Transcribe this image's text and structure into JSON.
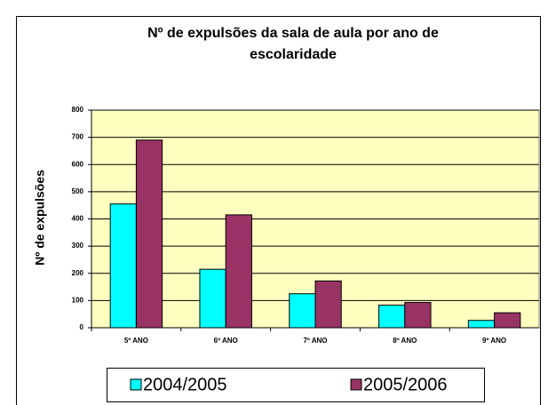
{
  "chart_data": {
    "type": "bar",
    "title": [
      "Nº de expulsões da sala de aula por ano de",
      "escolaridade"
    ],
    "y_label": "Nº de expulsões",
    "categories": [
      "5º ANO",
      "6º ANO",
      "7º ANO",
      "8º ANO",
      "9º ANO"
    ],
    "series": [
      {
        "name": "2004/2005",
        "color": "#00ffff",
        "values": [
          455,
          215,
          125,
          83,
          27
        ]
      },
      {
        "name": "2005/2006",
        "color": "#993366",
        "values": [
          690,
          415,
          172,
          93,
          55
        ]
      }
    ],
    "ylim": [
      0,
      800
    ],
    "yticks": [
      0,
      100,
      200,
      300,
      400,
      500,
      600,
      700,
      800
    ],
    "grid": true,
    "legend": "bottom",
    "plot_background": "#ffffc0"
  }
}
